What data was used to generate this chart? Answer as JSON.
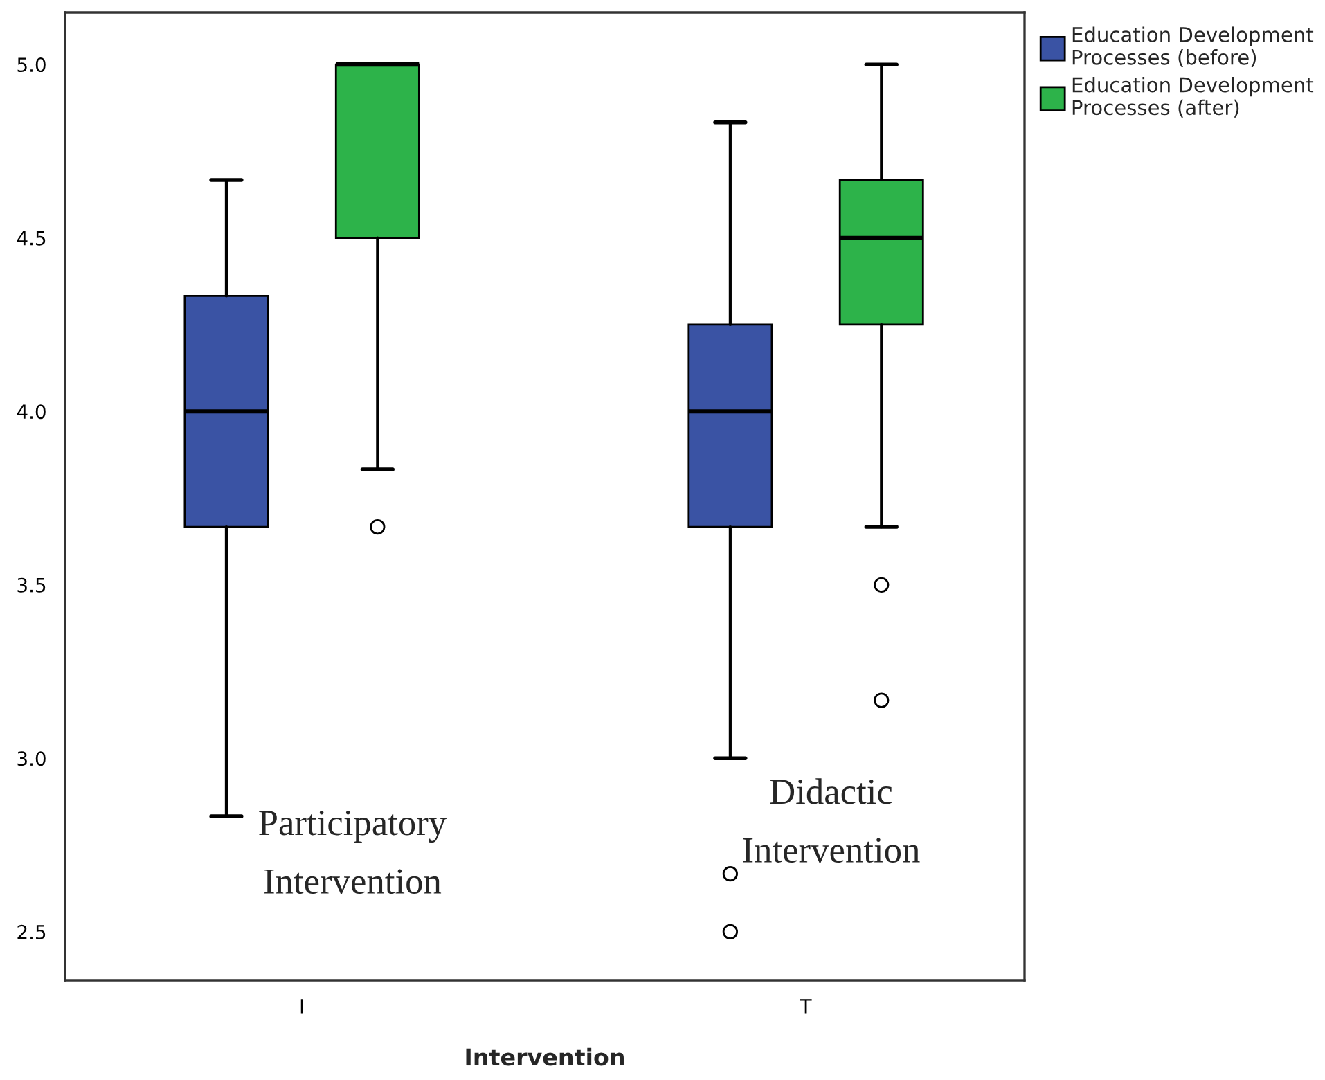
{
  "chart_data": {
    "type": "box",
    "xlabel": "Intervention",
    "categories": [
      "I",
      "T"
    ],
    "ylim": [
      2.36,
      5.15
    ],
    "yticks": [
      {
        "value": 2.5,
        "label": "2.5"
      },
      {
        "value": 3.0,
        "label": "3.0"
      },
      {
        "value": 3.5,
        "label": "3.5"
      },
      {
        "value": 4.0,
        "label": "4.0"
      },
      {
        "value": 4.5,
        "label": "4.5"
      },
      {
        "value": 5.0,
        "label": "5.0"
      }
    ],
    "legend": "top right",
    "grid": false,
    "series": [
      {
        "name": "Education Development\nProcesses (before)",
        "color": "#3a53a4",
        "boxes": [
          {
            "low": 2.833,
            "q1": 3.667,
            "median": 4.0,
            "q3": 4.333,
            "high": 4.667
          },
          {
            "low": 3.0,
            "q1": 3.667,
            "median": 4.0,
            "q3": 4.25,
            "high": 4.833,
            "outliers": [
              2.667,
              2.5
            ]
          }
        ]
      },
      {
        "name": "Education Development\nProcesses (after)",
        "color": "#2db34a",
        "boxes": [
          {
            "low": 3.833,
            "q1": 4.5,
            "median": 5.0,
            "q3": 5.0,
            "high": 5.0,
            "outliers": [
              3.667
            ]
          },
          {
            "low": 3.667,
            "q1": 4.25,
            "median": 4.5,
            "q3": 4.667,
            "high": 5.0,
            "outliers": [
              3.5,
              3.167
            ]
          }
        ]
      }
    ],
    "annotations": [
      "Participatory\nIntervention",
      "Didactic\nIntervention"
    ]
  }
}
